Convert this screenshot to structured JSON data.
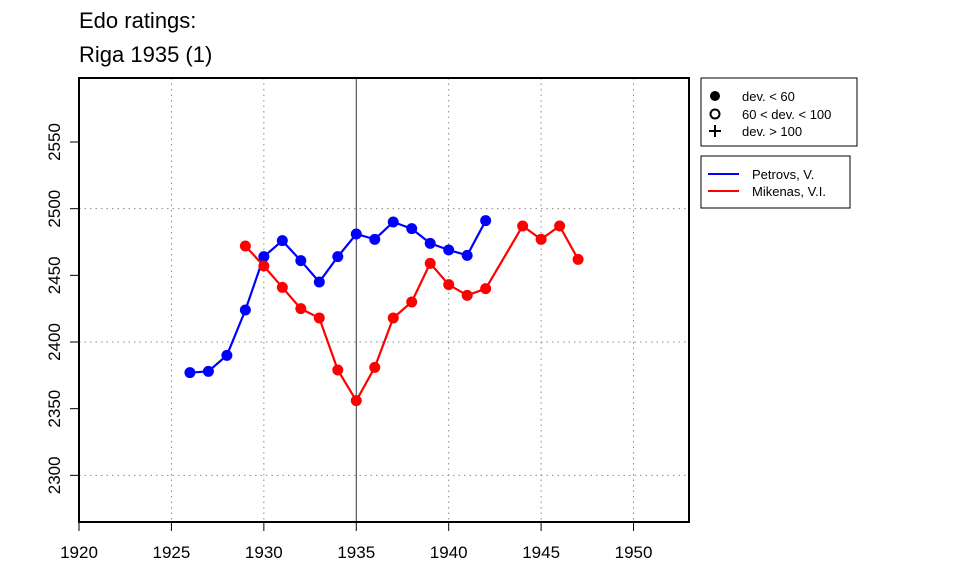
{
  "chart_data": {
    "type": "line",
    "title": [
      "Edo ratings:",
      "Riga 1935 (1)"
    ],
    "xlim": [
      1920,
      1953
    ],
    "ylim": [
      2265,
      2598
    ],
    "x_ticks": [
      1920,
      1925,
      1930,
      1935,
      1940,
      1945,
      1950
    ],
    "y_ticks": [
      2300,
      2350,
      2400,
      2450,
      2500,
      2550
    ],
    "x_grid": [
      1925,
      1930,
      1940,
      1945,
      1950
    ],
    "y_grid": [
      2300,
      2400,
      2500
    ],
    "vline": 1935,
    "grid": "dotted",
    "legend_markers": [
      {
        "symbol": "filled-circle",
        "label": "dev. < 60"
      },
      {
        "symbol": "open-circle",
        "label": "60 < dev. < 100"
      },
      {
        "symbol": "plus",
        "label": "dev. > 100"
      }
    ],
    "legend_placement": "right",
    "series": [
      {
        "name": "Petrovs, V.",
        "color": "#0000ff",
        "segments": [
          {
            "x": [
              1926,
              1927,
              1928,
              1929,
              1930,
              1931,
              1932,
              1933,
              1934,
              1935,
              1936,
              1937,
              1938,
              1939,
              1940,
              1941,
              1942
            ],
            "y": [
              2377,
              2378,
              2390,
              2424,
              2464,
              2476,
              2461,
              2445,
              2464,
              2481,
              2477,
              2490,
              2485,
              2474,
              2469,
              2465,
              2491
            ]
          }
        ]
      },
      {
        "name": "Mikenas, V.I.",
        "color": "#ff0000",
        "segments": [
          {
            "x": [
              1929,
              1930,
              1931,
              1932,
              1933,
              1934,
              1935,
              1936,
              1937,
              1938,
              1939,
              1940,
              1941,
              1942,
              1944,
              1945,
              1946,
              1947
            ],
            "y": [
              2472,
              2457,
              2441,
              2425,
              2418,
              2379,
              2356,
              2381,
              2418,
              2430,
              2459,
              2443,
              2435,
              2440,
              2487,
              2477,
              2487,
              2462
            ]
          }
        ]
      }
    ]
  }
}
